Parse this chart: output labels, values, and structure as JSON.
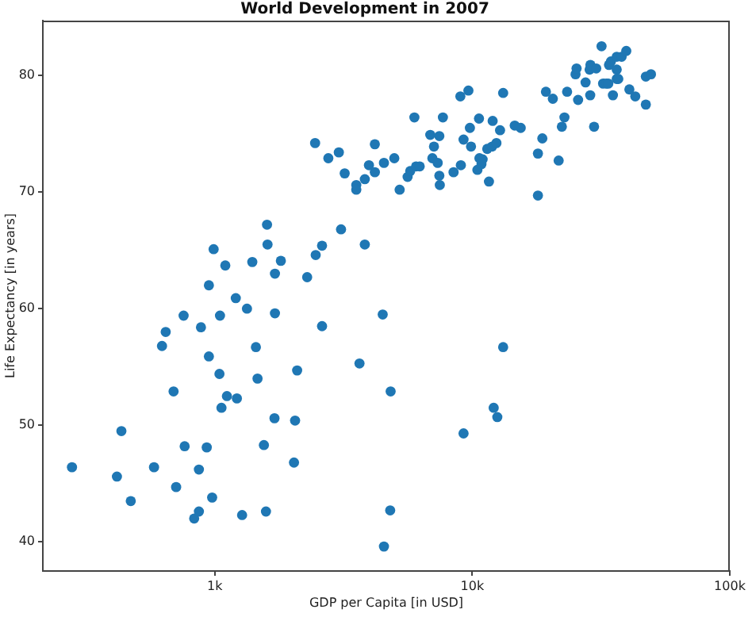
{
  "chart_data": {
    "type": "scatter",
    "title": "World Development in 2007",
    "xlabel": "GDP per Capita [in USD]",
    "ylabel": "Life Expectancy [in years]",
    "log": "x",
    "grid": false,
    "legend": false,
    "marker": "circle",
    "xlim": [
      215,
      100000
    ],
    "ylim": [
      37.5,
      84.7
    ],
    "xticks": [
      {
        "value": 1000,
        "label": "1k"
      },
      {
        "value": 10000,
        "label": "10k"
      },
      {
        "value": 100000,
        "label": "100k"
      }
    ],
    "yticks": [
      40,
      50,
      60,
      70,
      80
    ],
    "series": [
      {
        "color": "#1f77b4",
        "x": [
          279,
          434,
          417,
          472,
          581,
          624,
          645,
          692,
          708,
          757,
          764,
          832,
          868,
          868,
          884,
          931,
          949,
          977,
          1048,
          1043,
          1062,
          1115,
          1219,
          1277,
          1334,
          1445,
          1466,
          1552,
          1581,
          1713,
          1706,
          2051,
          2031,
          2089,
          2610,
          3648,
          4490,
          13180,
          4820,
          12110,
          12510,
          9250,
          4800,
          4540,
          2453,
          2761,
          3033,
          3196,
          3545,
          3545,
          3826,
          3970,
          4185,
          4185,
          3093,
          3826,
          1596,
          1603,
          990,
          1099,
          1399,
          1806,
          1713,
          949,
          1207,
          2285,
          2466,
          2610,
          4540,
          4980,
          5224,
          5610,
          5740,
          5960,
          6050,
          6250,
          6870,
          7100,
          7000,
          7340,
          7450,
          7450,
          7480,
          7690,
          8460,
          9030,
          8990,
          9660,
          9250,
          9790,
          9890,
          10620,
          10660,
          10970,
          10470,
          10860,
          11610,
          11430,
          11940,
          12410,
          12000,
          12820,
          13180,
          14620,
          15420,
          17990,
          18710,
          17990,
          19320,
          20550,
          21650,
          22280,
          22800,
          23350,
          25760,
          25180,
          25410,
          27540,
          28710,
          28550,
          28760,
          30290,
          29720,
          31770,
          32210,
          33130,
          33740,
          33960,
          34540,
          35170,
          36390,
          36390,
          36390,
          36900,
          38020,
          39630,
          40740,
          42950,
          47210,
          49430,
          47210
        ],
        "values": [
          46.4,
          49.5,
          45.6,
          43.5,
          46.4,
          56.8,
          58.0,
          52.9,
          44.7,
          59.4,
          48.2,
          42.0,
          42.6,
          46.2,
          58.4,
          48.1,
          55.9,
          43.8,
          59.4,
          54.4,
          51.5,
          52.5,
          52.3,
          42.3,
          60.0,
          56.7,
          54.0,
          48.3,
          42.6,
          59.6,
          50.6,
          50.4,
          46.8,
          54.7,
          58.5,
          55.3,
          59.5,
          56.7,
          52.9,
          51.5,
          50.7,
          49.3,
          42.7,
          39.6,
          74.2,
          72.9,
          73.4,
          71.6,
          70.6,
          70.2,
          71.1,
          72.3,
          74.1,
          71.7,
          66.8,
          65.5,
          67.2,
          65.5,
          65.1,
          63.7,
          64.0,
          64.1,
          63.0,
          62.0,
          60.9,
          62.7,
          64.6,
          65.4,
          72.5,
          72.9,
          70.2,
          71.3,
          71.8,
          76.4,
          72.2,
          72.2,
          74.9,
          73.9,
          72.9,
          72.5,
          74.8,
          71.4,
          70.6,
          76.4,
          71.7,
          72.3,
          78.2,
          78.7,
          74.5,
          75.5,
          73.9,
          76.3,
          72.9,
          72.8,
          71.9,
          72.4,
          70.9,
          73.7,
          73.9,
          74.2,
          76.1,
          75.3,
          78.5,
          75.7,
          75.5,
          73.3,
          74.6,
          69.7,
          78.6,
          78.0,
          72.7,
          75.6,
          76.4,
          78.6,
          77.9,
          80.1,
          80.6,
          79.4,
          78.3,
          80.5,
          80.9,
          80.6,
          75.6,
          82.5,
          79.3,
          79.3,
          79.3,
          80.9,
          81.2,
          78.3,
          81.6,
          80.5,
          79.7,
          79.7,
          81.6,
          82.1,
          78.8,
          78.2,
          79.9,
          80.1,
          77.5
        ]
      }
    ]
  }
}
